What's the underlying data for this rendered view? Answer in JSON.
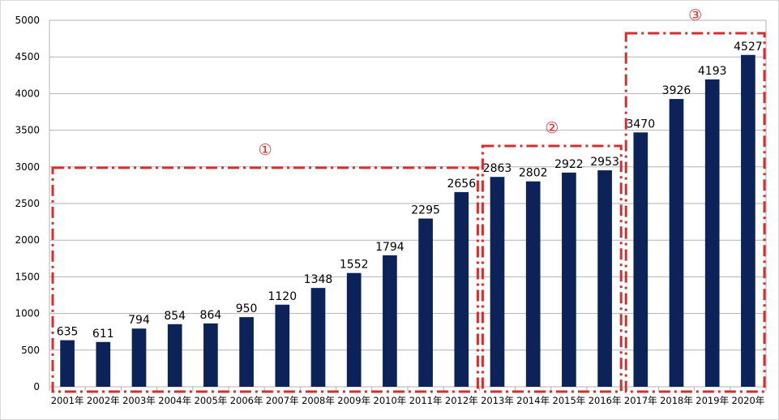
{
  "chart_data": {
    "type": "bar",
    "categories": [
      "2001年",
      "2002年",
      "2003年",
      "2004年",
      "2005年",
      "2006年",
      "2007年",
      "2008年",
      "2009年",
      "2010年",
      "2011年",
      "2012年",
      "2013年",
      "2014年",
      "2015年",
      "2016年",
      "2017年",
      "2018年",
      "2019年",
      "2020年"
    ],
    "values": [
      635,
      611,
      794,
      854,
      864,
      950,
      1120,
      1348,
      1552,
      1794,
      2295,
      2656,
      2863,
      2802,
      2922,
      2953,
      3470,
      3926,
      4193,
      4527
    ],
    "yticks": [
      0,
      500,
      1000,
      1500,
      2000,
      2500,
      3000,
      3500,
      4000,
      4500,
      5000
    ],
    "ylim": [
      0,
      5000
    ],
    "grid": true,
    "bar_color": "#0c2359",
    "highlight_color": "#d62d2d",
    "regions": [
      {
        "label": "①",
        "start_category": "2001年",
        "end_category": "2012年"
      },
      {
        "label": "②",
        "start_category": "2013年",
        "end_category": "2016年"
      },
      {
        "label": "③",
        "start_category": "2017年",
        "end_category": "2020年"
      }
    ]
  }
}
